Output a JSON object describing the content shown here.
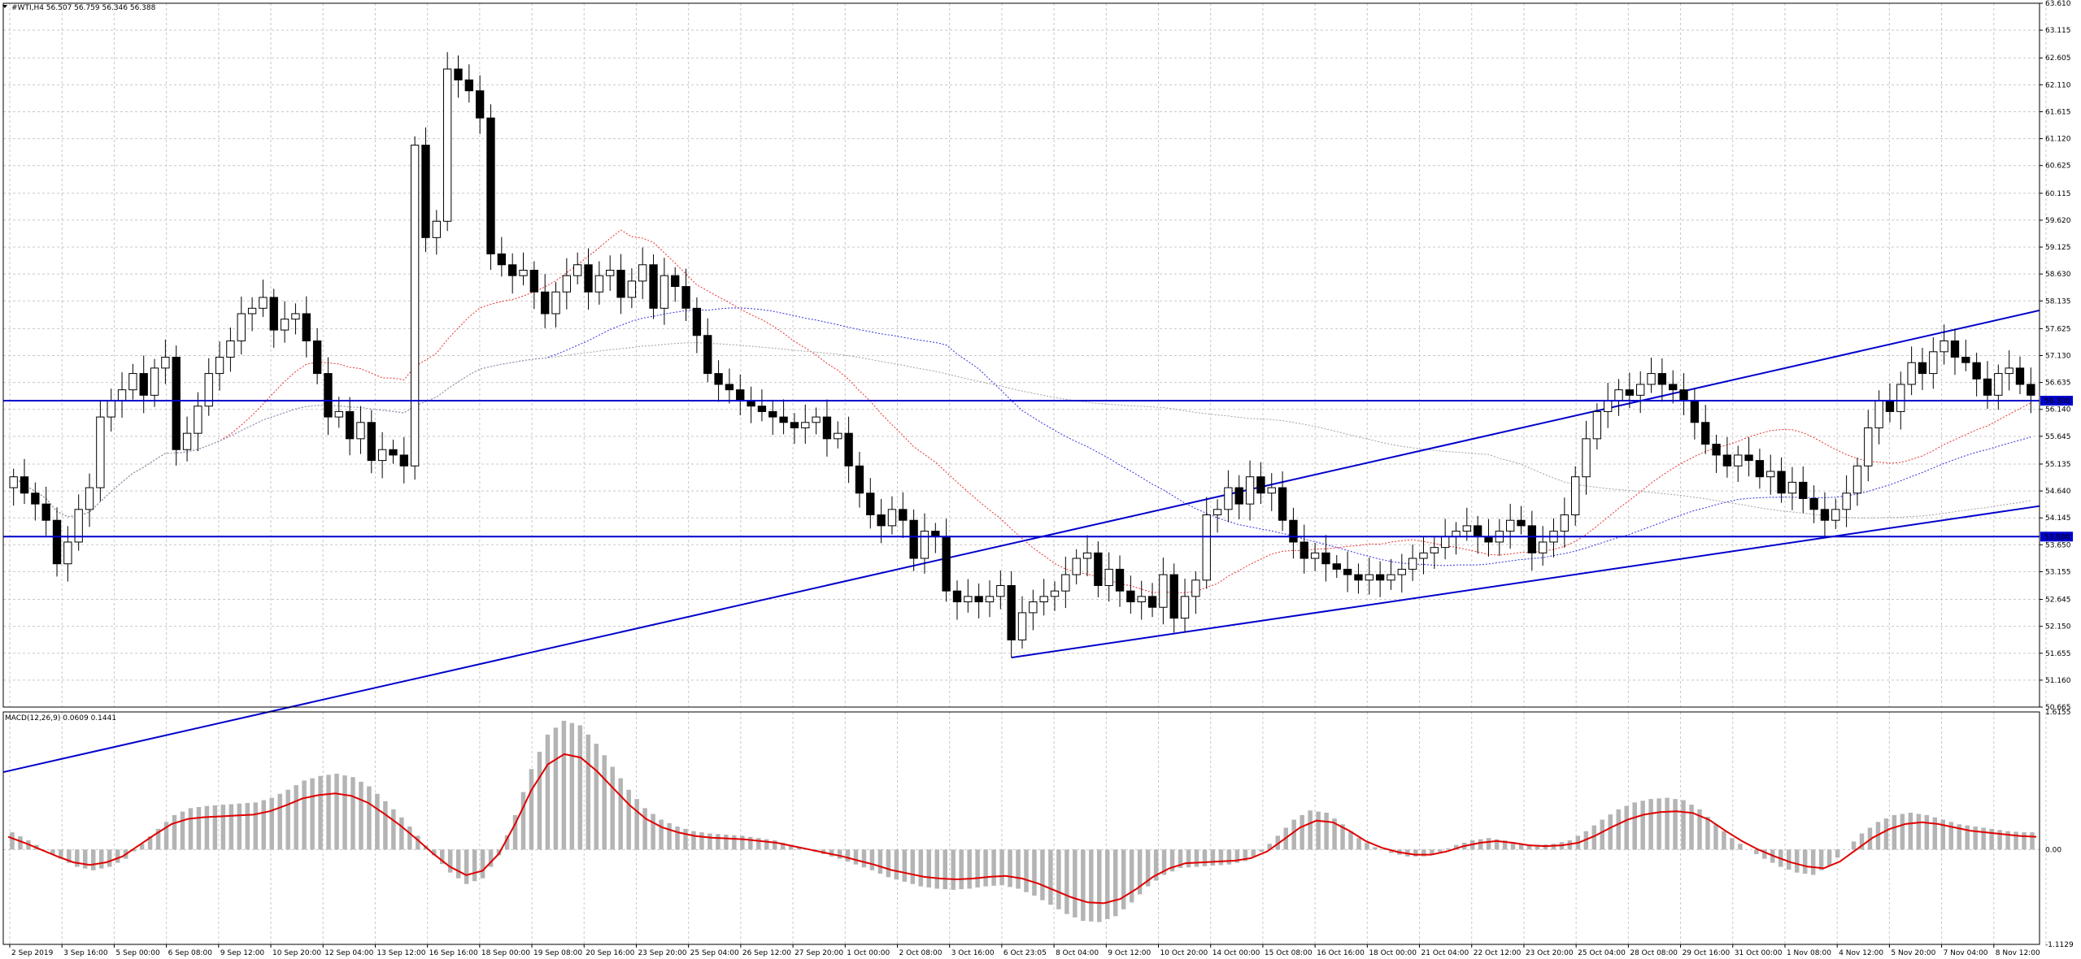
{
  "window": {
    "header": "#WTI,H4  56.507 56.759 56.346 56.388",
    "macd_header": "MACD(12,26,9) 0.0609 0.1441",
    "price_label_upper": "56.300",
    "price_label_lower": "53.800"
  },
  "colors": {
    "grid": "#c8c8c8",
    "channel": "#0000cc",
    "ma_red": "#e83030",
    "ma_blue": "#3030e0",
    "ma_gray": "#a0a0a0",
    "macd_hist": "#b4b4b4",
    "macd_signal": "#e00000",
    "label_bg": "#0000cc",
    "label_fg": "#ffffff"
  },
  "chart_data": [
    {
      "type": "candlestick",
      "symbol": "#WTI",
      "timeframe": "H4",
      "ohlc_last": {
        "open": 56.507,
        "high": 56.759,
        "low": 56.346,
        "close": 56.388
      },
      "ylim": [
        50.665,
        63.61
      ],
      "yticks": [
        "63.610",
        "63.115",
        "62.605",
        "62.110",
        "61.615",
        "61.120",
        "60.625",
        "60.115",
        "59.620",
        "59.125",
        "58.630",
        "58.135",
        "57.625",
        "57.130",
        "56.635",
        "56.140",
        "55.645",
        "55.135",
        "54.640",
        "54.145",
        "53.650",
        "53.155",
        "52.645",
        "52.150",
        "51.655",
        "51.160",
        "50.665"
      ],
      "xticks": [
        "2 Sep 2019",
        "3 Sep 16:00",
        "5 Sep 00:00",
        "6 Sep 08:00",
        "9 Sep 12:00",
        "10 Sep 20:00",
        "12 Sep 04:00",
        "13 Sep 12:00",
        "16 Sep 16:00",
        "18 Sep 00:00",
        "19 Sep 08:00",
        "20 Sep 16:00",
        "23 Sep 20:00",
        "25 Sep 04:00",
        "26 Sep 12:00",
        "27 Sep 20:00",
        "1 Oct 00:00",
        "2 Oct 08:00",
        "3 Oct 16:00",
        "6 Oct 23:05",
        "8 Oct 04:00",
        "9 Oct 12:00",
        "10 Oct 20:00",
        "14 Oct 00:00",
        "15 Oct 08:00",
        "16 Oct 16:00",
        "18 Oct 00:00",
        "21 Oct 04:00",
        "22 Oct 12:00",
        "23 Oct 20:00",
        "25 Oct 04:00",
        "28 Oct 08:00",
        "29 Oct 16:00",
        "31 Oct 00:00",
        "1 Nov 08:00",
        "4 Nov 12:00",
        "5 Nov 20:00",
        "7 Nov 04:00",
        "8 Nov 12:00"
      ],
      "horizontal_levels": [
        56.3,
        53.8
      ],
      "closes": [
        54.9,
        54.6,
        54.4,
        54.1,
        53.3,
        53.7,
        54.3,
        54.7,
        56.0,
        56.3,
        56.5,
        56.8,
        56.4,
        56.9,
        57.1,
        55.4,
        55.7,
        56.2,
        56.8,
        57.1,
        57.4,
        57.9,
        58.0,
        58.2,
        57.6,
        57.8,
        57.9,
        57.4,
        56.8,
        56.0,
        56.1,
        55.6,
        55.9,
        55.2,
        55.4,
        55.3,
        55.1,
        61.0,
        59.3,
        59.6,
        62.4,
        62.2,
        62.0,
        61.5,
        59.0,
        58.8,
        58.6,
        58.7,
        58.3,
        57.9,
        58.3,
        58.6,
        58.8,
        58.3,
        58.6,
        58.7,
        58.2,
        58.5,
        58.8,
        58.0,
        58.6,
        58.4,
        58.0,
        57.5,
        56.8,
        56.6,
        56.5,
        56.3,
        56.2,
        56.1,
        56.0,
        55.9,
        55.8,
        55.9,
        56.0,
        55.6,
        55.7,
        55.1,
        54.6,
        54.2,
        54.0,
        54.3,
        54.1,
        53.4,
        53.9,
        53.8,
        52.8,
        52.6,
        52.7,
        52.6,
        52.7,
        52.9,
        51.9,
        52.4,
        52.6,
        52.7,
        52.8,
        53.1,
        53.4,
        53.5,
        52.9,
        53.2,
        52.8,
        52.6,
        52.7,
        52.5,
        53.1,
        52.3,
        52.7,
        53.0,
        54.2,
        54.3,
        54.7,
        54.4,
        54.9,
        54.6,
        54.7,
        54.1,
        53.7,
        53.4,
        53.5,
        53.3,
        53.2,
        53.1,
        53.0,
        53.1,
        53.0,
        53.1,
        53.2,
        53.4,
        53.5,
        53.6,
        53.8,
        53.9,
        54.0,
        53.8,
        53.7,
        53.9,
        54.1,
        54.0,
        53.5,
        53.7,
        53.9,
        54.2,
        54.9,
        55.6,
        56.1,
        56.3,
        56.5,
        56.4,
        56.6,
        56.8,
        56.6,
        56.5,
        56.3,
        55.9,
        55.5,
        55.3,
        55.1,
        55.3,
        55.2,
        54.9,
        55.0,
        54.6,
        54.8,
        54.5,
        54.3,
        54.1,
        54.3,
        54.6,
        55.1,
        55.8,
        56.3,
        56.1,
        56.6,
        57.0,
        56.8,
        57.2,
        57.4,
        57.1,
        57.0,
        56.7,
        56.4,
        56.8,
        56.9,
        56.6,
        56.4
      ]
    },
    {
      "type": "macd",
      "params": "12,26,9",
      "main": 0.0609,
      "signal": 0.1441,
      "ylim": [
        -1.1129,
        1.6155
      ],
      "yticks": [
        "1.6155",
        "0.00",
        "-1.1129"
      ],
      "signal_line": [
        0.15,
        0.08,
        0.0,
        -0.08,
        -0.15,
        -0.18,
        -0.15,
        -0.08,
        0.05,
        0.18,
        0.3,
        0.36,
        0.38,
        0.39,
        0.4,
        0.41,
        0.45,
        0.52,
        0.6,
        0.64,
        0.66,
        0.63,
        0.55,
        0.42,
        0.28,
        0.12,
        -0.05,
        -0.2,
        -0.3,
        -0.25,
        -0.05,
        0.3,
        0.7,
        1.0,
        1.12,
        1.08,
        0.92,
        0.72,
        0.52,
        0.36,
        0.26,
        0.2,
        0.16,
        0.14,
        0.13,
        0.12,
        0.1,
        0.08,
        0.04,
        0.0,
        -0.04,
        -0.08,
        -0.13,
        -0.18,
        -0.24,
        -0.28,
        -0.32,
        -0.34,
        -0.35,
        -0.34,
        -0.32,
        -0.31,
        -0.34,
        -0.4,
        -0.48,
        -0.56,
        -0.62,
        -0.63,
        -0.58,
        -0.46,
        -0.32,
        -0.22,
        -0.16,
        -0.15,
        -0.14,
        -0.13,
        -0.1,
        -0.02,
        0.12,
        0.26,
        0.34,
        0.32,
        0.22,
        0.1,
        0.02,
        -0.03,
        -0.06,
        -0.06,
        -0.02,
        0.04,
        0.08,
        0.1,
        0.08,
        0.05,
        0.04,
        0.05,
        0.08,
        0.16,
        0.26,
        0.35,
        0.41,
        0.44,
        0.45,
        0.43,
        0.35,
        0.22,
        0.1,
        0.0,
        -0.08,
        -0.15,
        -0.2,
        -0.22,
        -0.14,
        0.0,
        0.14,
        0.24,
        0.3,
        0.32,
        0.3,
        0.26,
        0.22,
        0.2,
        0.18,
        0.16,
        0.15
      ]
    }
  ]
}
